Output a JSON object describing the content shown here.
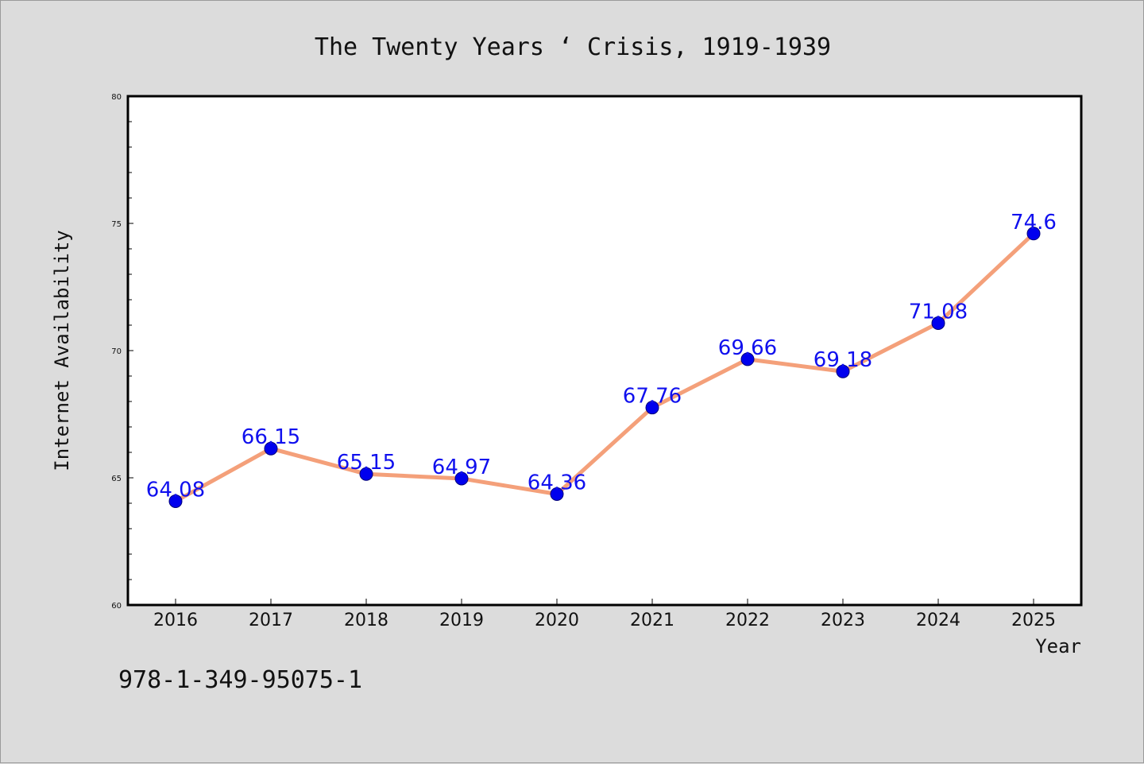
{
  "chart_data": {
    "type": "line",
    "title": "The Twenty Years ‘ Crisis, 1919-1939",
    "xlabel": "Year",
    "ylabel": "Internet Availability",
    "categories": [
      "2016",
      "2017",
      "2018",
      "2019",
      "2020",
      "2021",
      "2022",
      "2023",
      "2024",
      "2025"
    ],
    "series": [
      {
        "values": [
          64.08,
          66.15,
          65.15,
          64.97,
          64.36,
          67.76,
          69.66,
          69.18,
          71.08,
          74.6
        ]
      }
    ],
    "data_labels": [
      "64.08",
      "66.15",
      "65.15",
      "64.97",
      "64.36",
      "67.76",
      "69.66",
      "69.18",
      "71.08",
      "74.6"
    ],
    "ylim": [
      60,
      80
    ],
    "yticks": [
      "60",
      "65",
      "70",
      "75",
      "80"
    ],
    "grid": false,
    "line_color": "#f4a07a",
    "marker_color": "#0000ee",
    "label_color": "#1010ee"
  },
  "footer_text": "978-1-349-95075-1"
}
